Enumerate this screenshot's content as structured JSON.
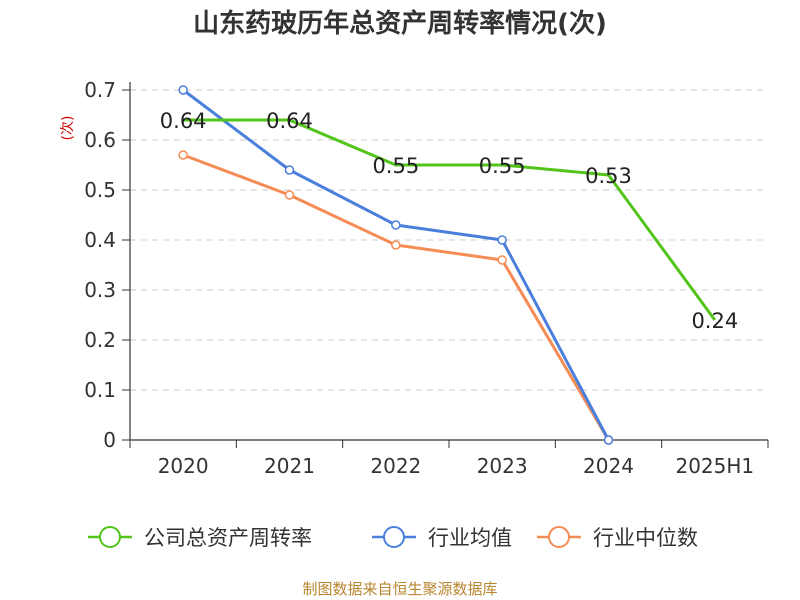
{
  "chart_data": {
    "type": "line",
    "title": "山东药玻历年总资产周转率情况(次)",
    "y_unit_label": "(次)",
    "categories": [
      "2020",
      "2021",
      "2022",
      "2023",
      "2024",
      "2025H1"
    ],
    "ylim": [
      0,
      0.7
    ],
    "y_ticks": [
      "0",
      "0.1",
      "0.2",
      "0.3",
      "0.4",
      "0.5",
      "0.6",
      "0.7"
    ],
    "grid": true,
    "legend_position": "bottom",
    "series": [
      {
        "name": "公司总资产周转率",
        "color": "#52c41a",
        "values": [
          0.64,
          0.64,
          0.55,
          0.55,
          0.53,
          0.24
        ],
        "labels": [
          "0.64",
          "0.64",
          "0.55",
          "0.55",
          "0.53",
          "0.24"
        ],
        "markers": false
      },
      {
        "name": "行业均值",
        "color": "#4a7fdc",
        "values": [
          0.7,
          0.54,
          0.43,
          0.4,
          0.0,
          null
        ],
        "markers": true
      },
      {
        "name": "行业中位数",
        "color": "#f58c55",
        "values": [
          0.57,
          0.49,
          0.39,
          0.36,
          0.0,
          null
        ],
        "markers": true
      }
    ],
    "source": "制图数据来自恒生聚源数据库"
  }
}
